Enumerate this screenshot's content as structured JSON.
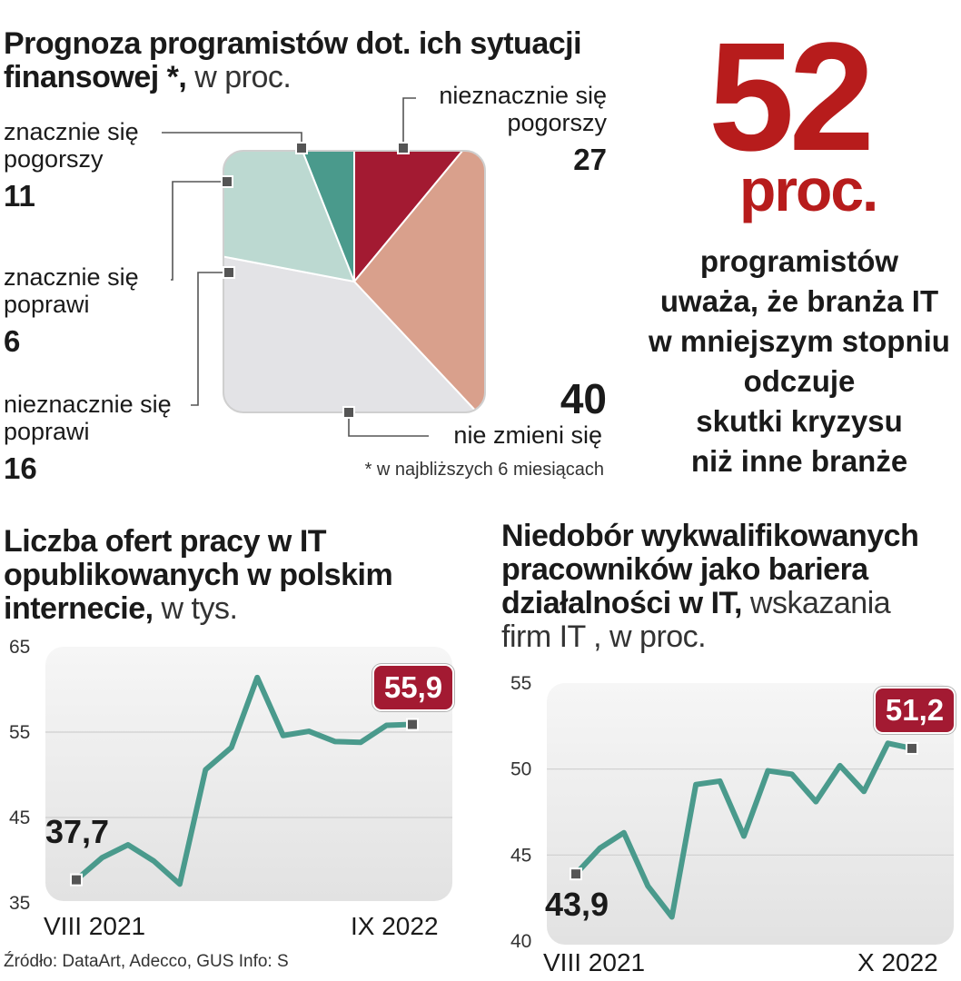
{
  "pie": {
    "title_bold": "Prognoza programistów dot. ich sytuacji",
    "title_bold2": "finansowej *,",
    "title_light": " w proc.",
    "footnote": "* w najbliższych 6 miesiącach",
    "labels": {
      "znacznie_pogorszy": [
        "znacznie się",
        "pogorszy"
      ],
      "nieznacznie_pogorszy": [
        "nieznacznie się",
        "pogorszy"
      ],
      "znacznie_poprawi": [
        "znacznie się",
        "poprawi"
      ],
      "nieznacznie_poprawi": [
        "nieznacznie się",
        "poprawi"
      ],
      "nie_zmieni": "nie zmieni się"
    },
    "values": {
      "znacznie_pogorszy": "11",
      "nieznacznie_pogorszy": "27",
      "znacznie_poprawi": "6",
      "nieznacznie_poprawi": "16",
      "nie_zmieni": "40"
    }
  },
  "stat": {
    "value": "52",
    "unit": "proc.",
    "lines": [
      "programistów",
      "uważa, że branża IT",
      "w mniejszym stopniu",
      "odczuje",
      "skutki kryzysu",
      "niż inne branże"
    ]
  },
  "offers": {
    "title_lines": [
      "Liczba ofert pracy w IT",
      "opublikowanych w polskim"
    ],
    "title_last_bold": "internecie,",
    "title_last_light": " w tys.",
    "first_label": "37,7",
    "last_label": "55,9",
    "x_start": "VIII 2021",
    "x_end": "IX 2022"
  },
  "shortage": {
    "title_lines": [
      "Niedobór wykwalifikowanych",
      "pracowników jako bariera"
    ],
    "title_line3_bold": "działalności  w IT,",
    "title_line3_light": " wskazania",
    "title_line4": "firm IT , w proc.",
    "first_label": "43,9",
    "last_label": "51,2",
    "x_start": "VIII 2021",
    "x_end": "X 2022"
  },
  "source": "Źródło: DataArt, Adecco, GUS   Info: S",
  "colors": {
    "znacznie_pogorszy": "#a31a32",
    "nieznacznie_pogorszy": "#d9a08c",
    "znacznie_poprawi": "#4a9a8c",
    "nieznacznie_poprawi": "#bcd9d1",
    "nie_zmieni": "#e3e3e6",
    "line": "#4a9a8c",
    "accent": "#b71c1c"
  },
  "chart_data": [
    {
      "type": "pie",
      "title": "Prognoza programistów dot. ich sytuacji finansowej *, w proc.",
      "categories": [
        "znacznie się pogorszy",
        "nieznacznie się pogorszy",
        "nie zmieni się",
        "nieznacznie się poprawi",
        "znacznie się poprawi"
      ],
      "values": [
        11,
        27,
        40,
        16,
        6
      ]
    },
    {
      "type": "line",
      "title": "Liczba ofert pracy w IT opublikowanych w polskim internecie, w tys.",
      "ylim": [
        35,
        65
      ],
      "yticks": [
        35,
        45,
        55,
        65
      ],
      "x": [
        "VIII 2021",
        "",
        "",
        "",
        "",
        "",
        "",
        "",
        "",
        "",
        "",
        "",
        "",
        "IX 2022"
      ],
      "values": [
        37.7,
        40.3,
        41.8,
        39.9,
        37.2,
        50.6,
        53.2,
        61.4,
        54.6,
        55.1,
        53.9,
        53.8,
        55.8,
        55.9
      ]
    },
    {
      "type": "line",
      "title": "Niedobór wykwalifikowanych pracowników jako bariera działalności w IT, wskazania firm IT , w proc.",
      "ylim": [
        40,
        55
      ],
      "yticks": [
        40,
        45,
        50,
        55
      ],
      "x": [
        "VIII 2021",
        "",
        "",
        "",
        "",
        "",
        "",
        "",
        "",
        "",
        "",
        "",
        "",
        "",
        "X 2022"
      ],
      "values": [
        43.9,
        45.4,
        46.3,
        43.2,
        41.4,
        49.1,
        49.3,
        46.1,
        49.9,
        49.7,
        48.1,
        50.2,
        48.7,
        51.5,
        51.2
      ]
    }
  ]
}
